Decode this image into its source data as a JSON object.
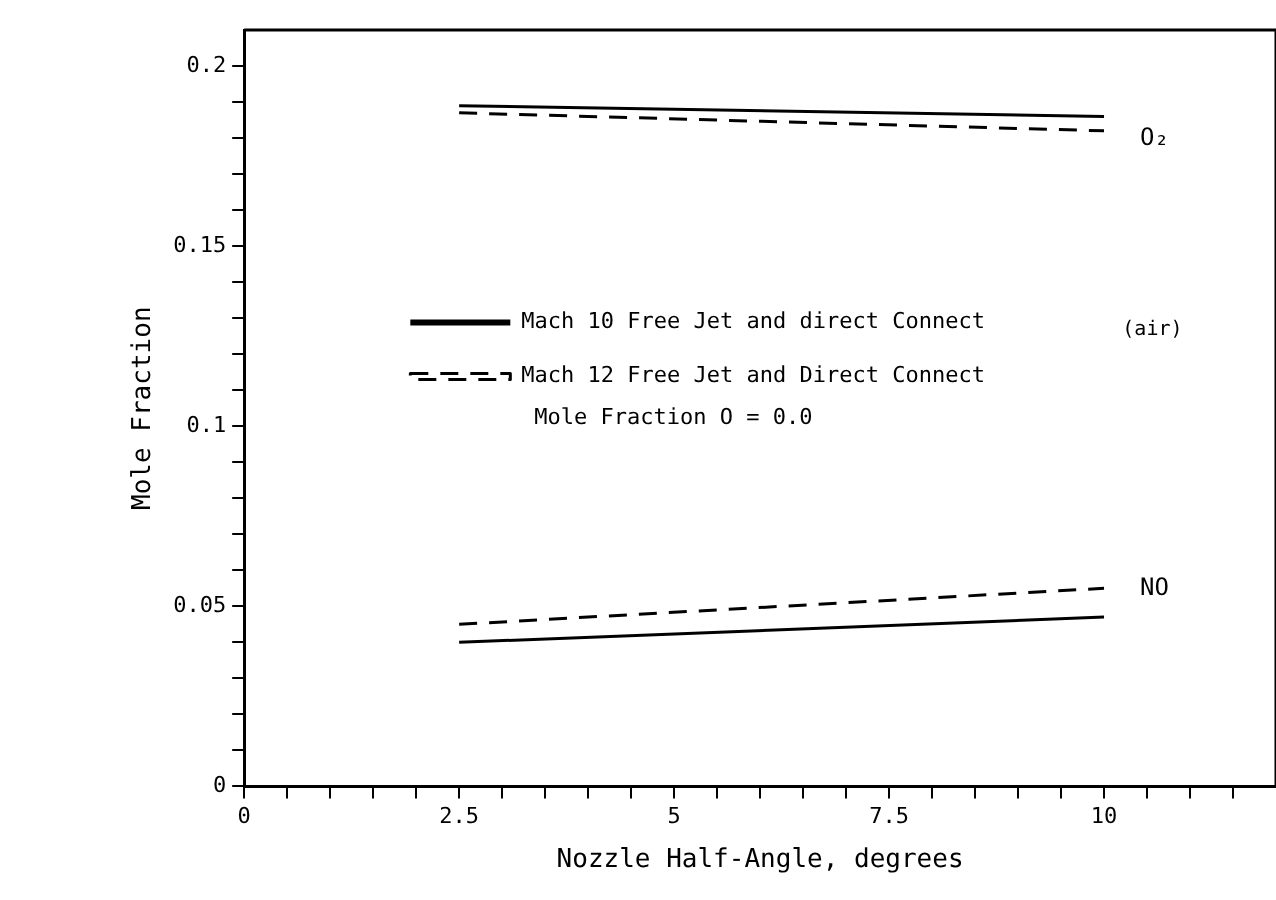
{
  "chart_data": {
    "type": "line",
    "xlabel": "Nozzle Half-Angle, degrees",
    "ylabel": "Mole Fraction",
    "x": [
      2.5,
      10
    ],
    "series": [
      {
        "name": "Mach 10 Free Jet and direct Connect",
        "color": "#000000",
        "line_style": "solid",
        "values": [
          0.189,
          0.186
        ]
      },
      {
        "name": "Mach 12 Free Jet and Direct Connect",
        "color": "#000000",
        "line_style": "dashed",
        "values": [
          0.187,
          0.182
        ]
      },
      {
        "color": "#000000",
        "line_style": "solid",
        "values": [
          0.04,
          0.047
        ]
      },
      {
        "color": "#000000",
        "line_style": "dashed",
        "values": [
          0.045,
          0.055
        ]
      }
    ],
    "xlim": [
      0,
      12
    ],
    "ylim": [
      0,
      0.21
    ],
    "xticks": [
      0,
      {
        "value": 0.5,
        "label": null
      },
      {
        "value": 1,
        "label": null
      },
      {
        "value": 1.5,
        "label": null
      },
      {
        "value": 2,
        "label": null
      },
      2.5,
      {
        "value": 3,
        "label": null
      },
      {
        "value": 3.5,
        "label": null
      },
      {
        "value": 4,
        "label": null
      },
      {
        "value": 4.5,
        "label": null
      },
      5,
      {
        "value": 5.5,
        "label": null
      },
      {
        "value": 6,
        "label": null
      },
      {
        "value": 6.5,
        "label": null
      },
      {
        "value": 7,
        "label": null
      },
      7.5,
      {
        "value": 8,
        "label": null
      },
      {
        "value": 8.5,
        "label": null
      },
      {
        "value": 9,
        "label": null
      },
      {
        "value": 9.5,
        "label": null
      },
      10,
      {
        "value": 10.5,
        "label": null
      },
      {
        "value": 11,
        "label": null
      },
      {
        "value": 11.5,
        "label": null
      }
    ],
    "yticks": [
      0,
      {
        "value": 0.01,
        "label": null
      },
      {
        "value": 0.02,
        "label": null
      },
      {
        "value": 0.03,
        "label": null
      },
      {
        "value": 0.04,
        "label": null
      },
      0.05,
      {
        "value": 0.06,
        "label": null
      },
      {
        "value": 0.07,
        "label": null
      },
      {
        "value": 0.08,
        "label": null
      },
      {
        "value": 0.09,
        "label": null
      },
      0.1,
      {
        "value": 0.11,
        "label": null
      },
      {
        "value": 0.12,
        "label": null
      },
      {
        "value": 0.13,
        "label": null
      },
      {
        "value": 0.14,
        "label": null
      },
      0.15,
      {
        "value": 0.16,
        "label": null
      },
      {
        "value": 0.17,
        "label": null
      },
      {
        "value": 0.18,
        "label": null
      },
      {
        "value": 0.19,
        "label": null
      },
      0.2
    ],
    "grid": false,
    "legend": "center left",
    "marker": "none",
    "annotations": [
      "O₂",
      "NO",
      "(air)",
      "Mole Fraction O = 0.0"
    ]
  }
}
